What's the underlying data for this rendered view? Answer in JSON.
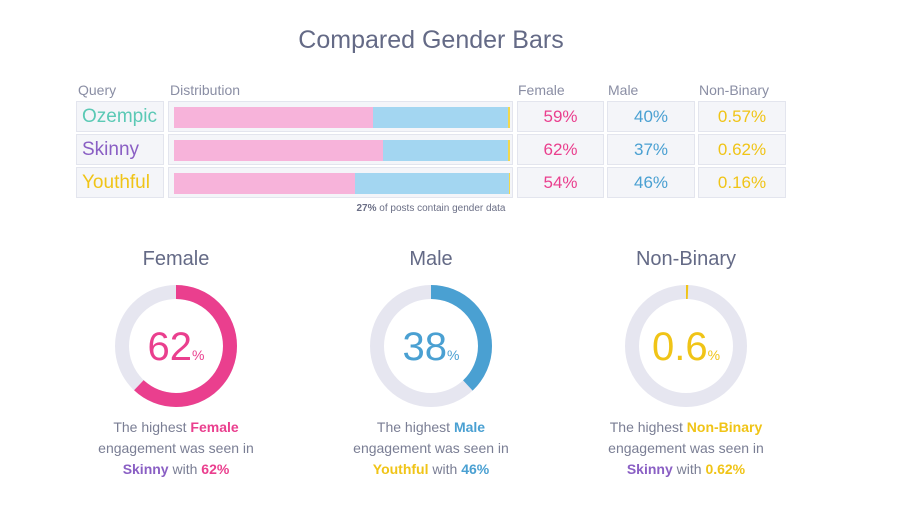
{
  "title": "Compared Gender Bars",
  "headers": {
    "query": "Query",
    "distribution": "Distribution",
    "female": "Female",
    "male": "Male",
    "nonbinary": "Non-Binary"
  },
  "colors": {
    "female": "#f7b3da",
    "male": "#a3d6f1",
    "nonbinary": "#f2d84c",
    "female_text": "#ea3f8e",
    "male_text": "#4aa0d2",
    "nonbinary_text": "#f0c417",
    "skinny_text": "#8a5fc4",
    "ozempic_text": "#5bc9b5",
    "track": "#e6e6f0"
  },
  "chart_data": [
    {
      "type": "bar",
      "title": "Compared Gender Bars",
      "categories": [
        "Ozempic",
        "Skinny",
        "Youthful"
      ],
      "series": [
        {
          "name": "Female",
          "values": [
            59,
            62,
            54
          ]
        },
        {
          "name": "Male",
          "values": [
            40,
            37,
            46
          ]
        },
        {
          "name": "Non-Binary",
          "values": [
            0.57,
            0.62,
            0.16
          ]
        }
      ],
      "labels": {
        "female": [
          "59%",
          "62%",
          "54%"
        ],
        "male": [
          "40%",
          "37%",
          "46%"
        ],
        "nonbinary": [
          "0.57%",
          "0.62%",
          "0.16%"
        ]
      },
      "stacked": true,
      "unit": "%"
    },
    {
      "type": "pie",
      "gauges": [
        {
          "name": "Female",
          "value": 62,
          "display": "62",
          "unit": "%",
          "text_pre": "The highest ",
          "highlight": "Female",
          "text_mid": "engagement was seen in",
          "query": "Skinny",
          "with": " with ",
          "pct": "62%"
        },
        {
          "name": "Male",
          "value": 38,
          "display": "38",
          "unit": "%",
          "text_pre": "The highest ",
          "highlight": "Male",
          "text_mid": "engagement was seen in",
          "query": "Youthful",
          "with": " with ",
          "pct": "46%"
        },
        {
          "name": "Non-Binary",
          "value": 0.6,
          "display": "0.6",
          "unit": "%",
          "text_pre": "The highest ",
          "highlight": "Non-Binary",
          "text_mid": "engagement was seen in",
          "query": "Skinny",
          "with": " with ",
          "pct": "0.62%"
        }
      ]
    }
  ],
  "note": {
    "bold": "27%",
    "rest": " of posts contain gender data"
  }
}
